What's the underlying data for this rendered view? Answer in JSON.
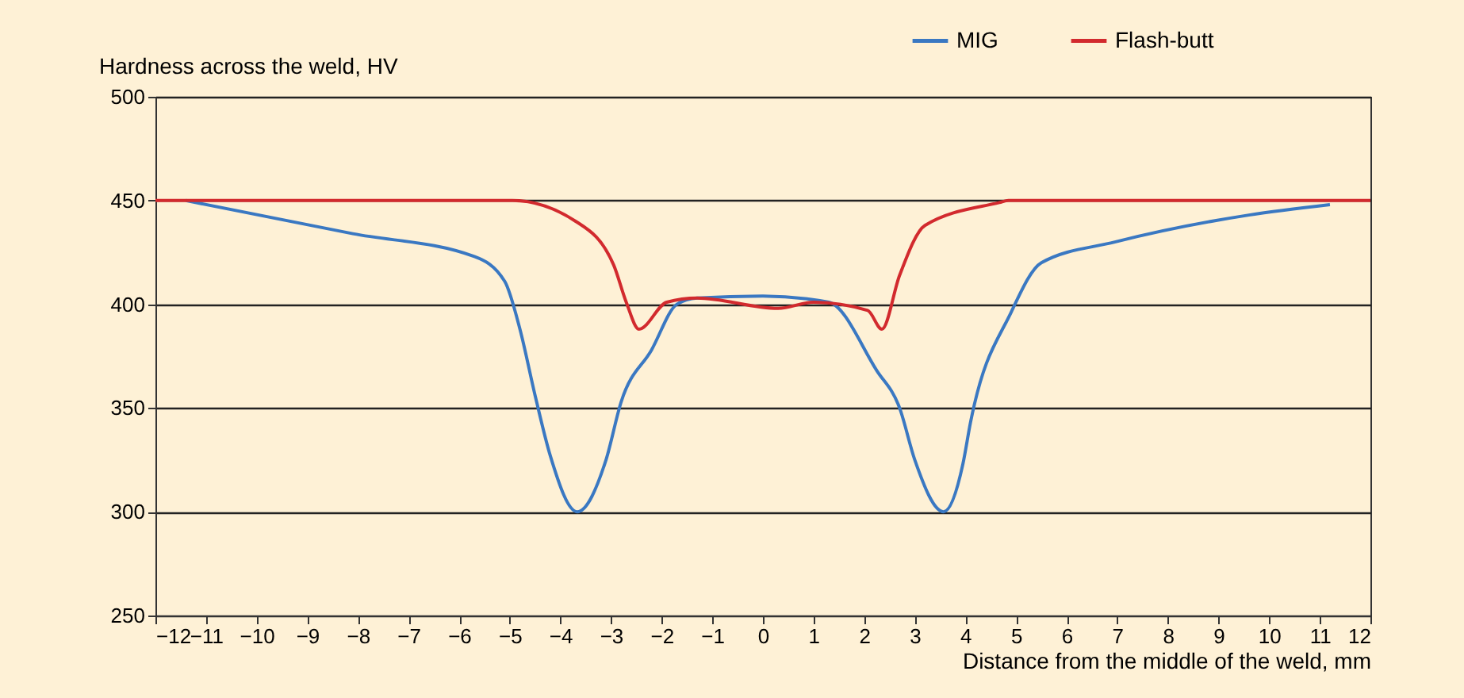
{
  "chart_data": {
    "type": "line",
    "ylabel": "Hardness across the weld, HV",
    "xlabel": "Distance from the middle of the weld, mm",
    "xlim": [
      -12,
      12
    ],
    "xticks": [
      -12,
      -11,
      -10,
      -9,
      -8,
      -7,
      -6,
      -5,
      -4,
      -3,
      -2,
      -1,
      0,
      1,
      2,
      3,
      4,
      5,
      6,
      7,
      8,
      9,
      10,
      11,
      12
    ],
    "ylim": [
      250,
      500
    ],
    "yticks": [
      250,
      300,
      350,
      400,
      450,
      500
    ],
    "grid": "y",
    "legend": "top right",
    "marker": "none",
    "line_style": "solid",
    "series": [
      {
        "name": "MIG",
        "color": "#3a78c2",
        "x": [
          -11.4,
          -8.1,
          -5.7,
          -5.1,
          -4.8,
          -4.5,
          -4.2,
          -3.67,
          -3.1,
          -2.8,
          -2.2,
          -1.7,
          -1.3,
          0,
          1.3,
          2.25,
          2.7,
          3.0,
          3.57,
          3.95,
          4.1,
          4.9,
          5.5,
          6.95,
          9.6,
          11.2
        ],
        "values": [
          450,
          434,
          423,
          411,
          388,
          356,
          327,
          300,
          325,
          353,
          378,
          400,
          403,
          404,
          401,
          368,
          350,
          325,
          300,
          323,
          343,
          396,
          420,
          430,
          443,
          448
        ]
      },
      {
        "name": "Flash-butt",
        "color": "#d22a2e",
        "x": [
          -12,
          -4.95,
          -3.7,
          -2.95,
          -2.7,
          -2.45,
          -1.9,
          -1.3,
          0.3,
          1.0,
          2.07,
          2.35,
          2.7,
          3.2,
          4.67,
          4.85,
          12
        ],
        "values": [
          450,
          450,
          440,
          419,
          401,
          388,
          401,
          403,
          398,
          401,
          397,
          388,
          414,
          438,
          449,
          450,
          450
        ]
      }
    ]
  }
}
